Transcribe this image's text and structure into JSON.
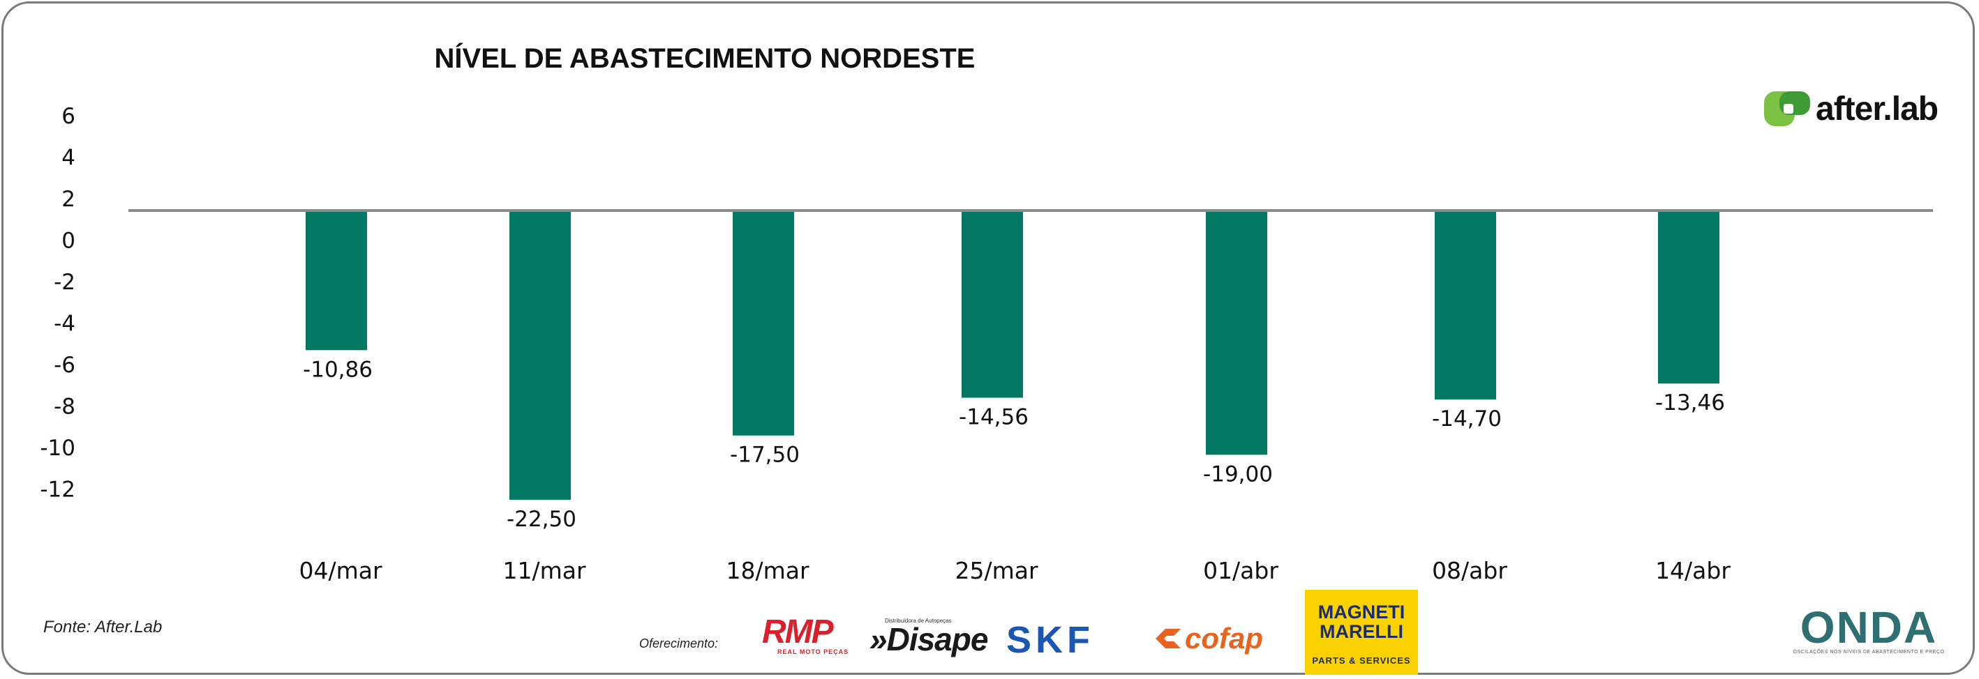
{
  "chart_data": {
    "type": "bar",
    "title": "NÍVEL DE ABASTECIMENTO NORDESTE",
    "categories": [
      "04/mar",
      "11/mar",
      "18/mar",
      "25/mar",
      "01/abr",
      "08/abr",
      "14/abr"
    ],
    "values": [
      -10.86,
      -22.5,
      -17.5,
      -14.56,
      -19.0,
      -14.7,
      -13.46
    ],
    "data_labels": [
      "-10,86",
      "-22,50",
      "-17,50",
      "-14,56",
      "-19,00",
      "-14,70",
      "-13,46"
    ],
    "y_ticks": [
      "6",
      "4",
      "2",
      "0",
      "-2",
      "-4",
      "-6",
      "-8",
      "-10",
      "-12"
    ],
    "xlabel": "",
    "ylabel": "",
    "grid": false,
    "legend": "none",
    "bar_color": "#007862",
    "baseline_color": "#8a8a8a"
  },
  "header": {
    "brand": "after.lab",
    "brand_colors": [
      "#7cc242",
      "#3f9b35"
    ]
  },
  "footer": {
    "source": "Fonte: After.Lab",
    "offer_label": "Oferecimento:",
    "sponsors": {
      "rmp": {
        "name": "RMP",
        "sub": "REAL MOTO PEÇAS",
        "color": "#d9202b"
      },
      "disape": {
        "name": "Disape",
        "sub": "Distribuidora de Autopeças",
        "color": "#1a1a1a"
      },
      "skf": {
        "name": "SKF",
        "color": "#1a56b4"
      },
      "cofap": {
        "name": "cofap",
        "color": "#e8641e"
      },
      "magneti": {
        "name": "MAGNETI MARELLI",
        "sub": "PARTS & SERVICES",
        "bg": "#f9d200"
      },
      "onda": {
        "name": "ONDA",
        "sub": "OSCILAÇÕES NOS NÍVEIS DE ABASTECIMENTO E PREÇO"
      }
    }
  }
}
